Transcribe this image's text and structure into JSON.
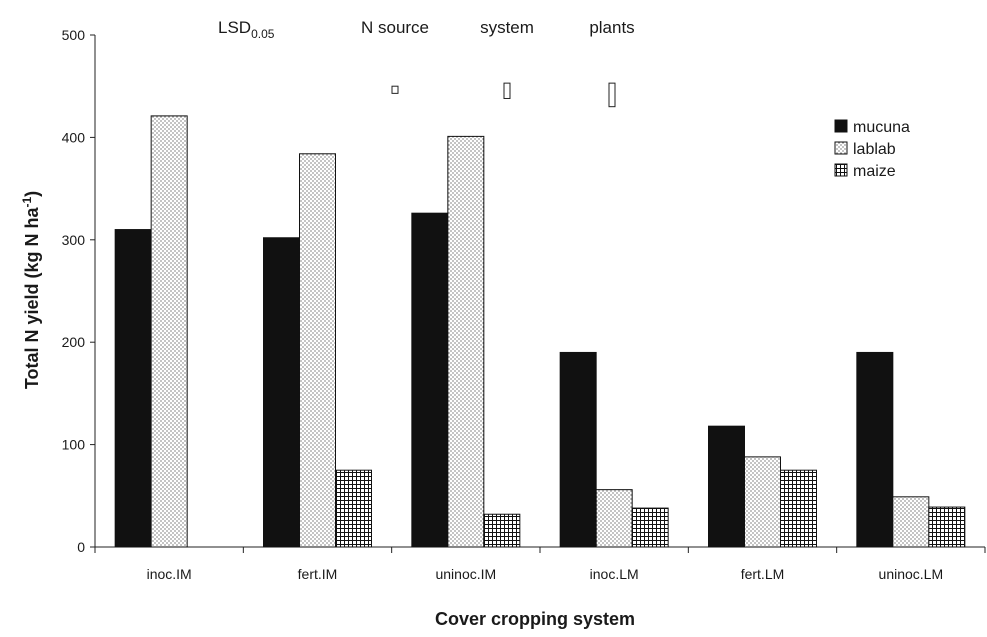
{
  "chart_data": {
    "type": "bar",
    "title": "",
    "xlabel": "Cover cropping system",
    "ylabel_main": "Total N yield (kg N ha",
    "ylabel_sup": "-1",
    "ylabel_close": ")",
    "ylim": [
      0,
      500
    ],
    "yticks": [
      0,
      100,
      200,
      300,
      400,
      500
    ],
    "grid": false,
    "legend_position": "top-right",
    "categories": [
      "inoc.IM",
      "fert.IM",
      "uninoc.IM",
      "inoc.LM",
      "fert.LM",
      "uninoc.LM"
    ],
    "series": [
      {
        "name": "mucuna",
        "pattern": "solid",
        "color": "#111111",
        "values": [
          310,
          302,
          326,
          190,
          118,
          190
        ]
      },
      {
        "name": "lablab",
        "pattern": "dots",
        "color": "#ffffff",
        "values": [
          421,
          384,
          401,
          56,
          88,
          49
        ]
      },
      {
        "name": "maize",
        "pattern": "grid",
        "color": "#ffffff",
        "values": [
          null,
          75,
          32,
          38,
          75,
          39
        ]
      }
    ],
    "lsd": {
      "label_main": "LSD",
      "label_sub": "0.05",
      "items": [
        {
          "label": "N source",
          "top": 450,
          "bottom": 443
        },
        {
          "label": "system",
          "top": 453,
          "bottom": 438
        },
        {
          "label": "plants",
          "top": 453,
          "bottom": 430
        }
      ]
    }
  }
}
